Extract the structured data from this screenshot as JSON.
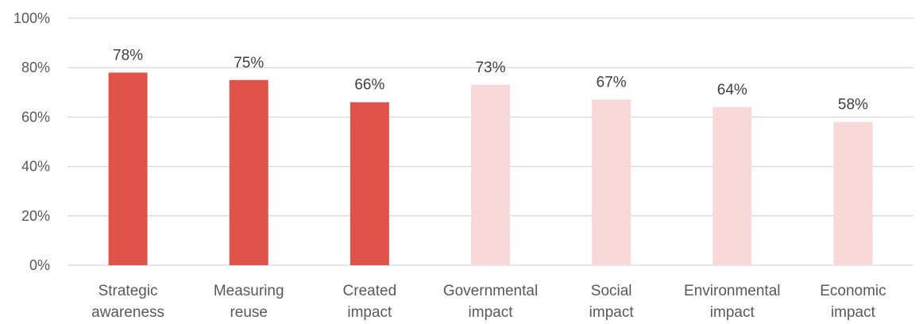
{
  "chart_data": {
    "type": "bar",
    "categories": [
      [
        "Strategic",
        "awareness"
      ],
      [
        "Measuring",
        "reuse"
      ],
      [
        "Created",
        "impact"
      ],
      [
        "Governmental",
        "impact"
      ],
      [
        "Social",
        "impact"
      ],
      [
        "Environmental",
        "impact"
      ],
      [
        "Economic",
        "impact"
      ]
    ],
    "values": [
      78,
      75,
      66,
      73,
      67,
      64,
      58
    ],
    "data_labels": [
      "78%",
      "75%",
      "66%",
      "73%",
      "67%",
      "64%",
      "58%"
    ],
    "bar_colors": [
      "#e0534b",
      "#e0534b",
      "#e0534b",
      "#f9d8d9",
      "#f9d8d9",
      "#f9d8d9",
      "#f9d8d9"
    ],
    "ylim": [
      0,
      100
    ],
    "yticks": [
      0,
      20,
      40,
      60,
      80,
      100
    ],
    "ytick_labels": [
      "0%",
      "20%",
      "40%",
      "60%",
      "80%",
      "100%"
    ],
    "grid": true,
    "grid_color": "#d9d9d9",
    "legend": "none"
  }
}
